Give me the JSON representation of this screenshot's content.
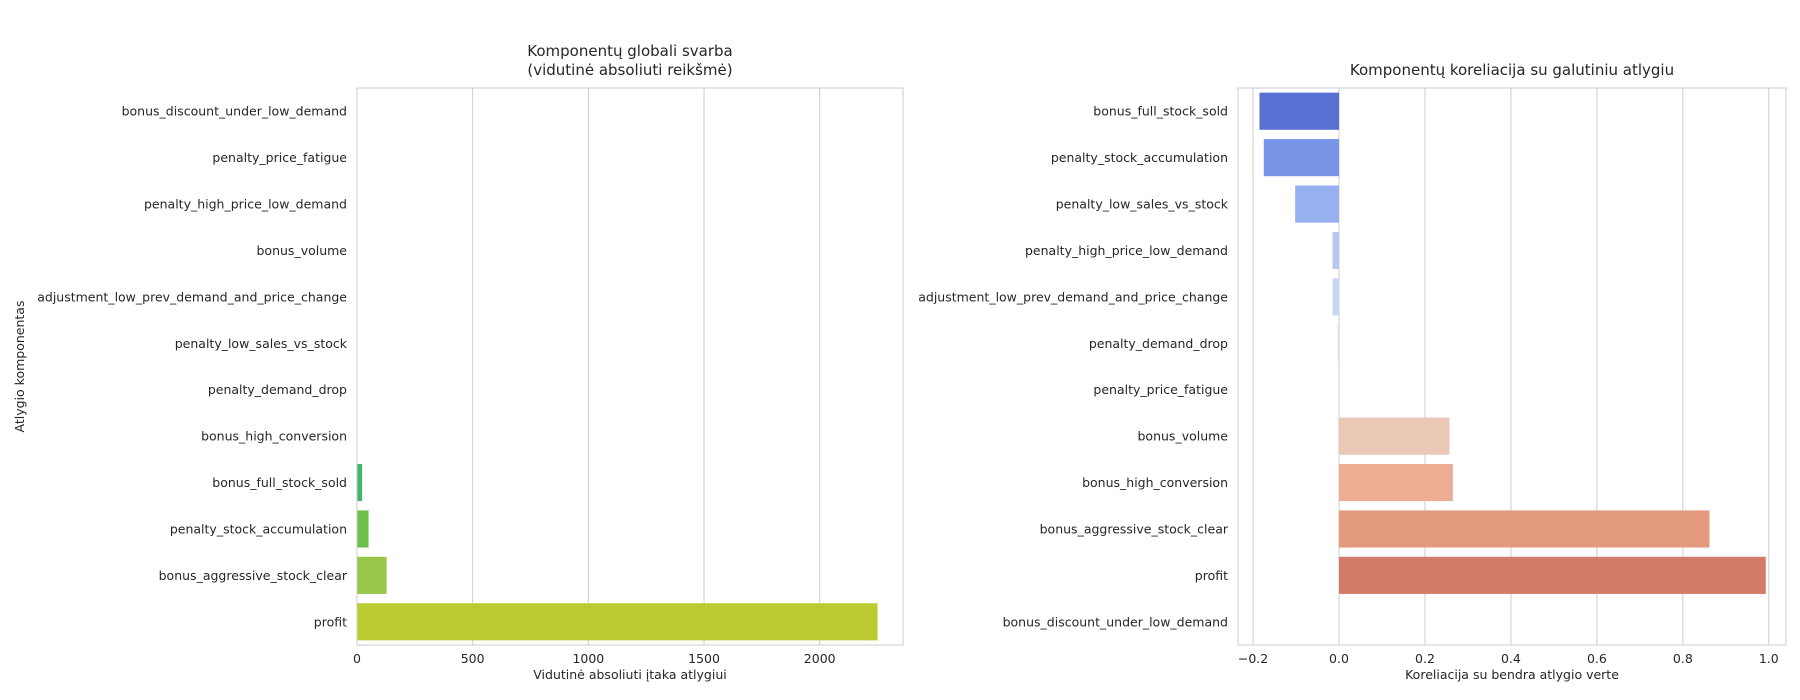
{
  "chart_data": [
    {
      "type": "bar",
      "orientation": "horizontal",
      "title": [
        "Komponentų globali svarba",
        "(vidutinė absoliuti reikšmė)"
      ],
      "xlabel": "Vidutinė absoliuti įtaka atlygiui",
      "ylabel": "Atlygio komponentas",
      "xlim": [
        0,
        2360
      ],
      "xticks": [
        "0",
        "500",
        "1000",
        "1500",
        "2000"
      ],
      "grid": true,
      "categories": [
        "bonus_discount_under_low_demand",
        "penalty_price_fatigue",
        "penalty_high_price_low_demand",
        "bonus_volume",
        "adjustment_low_prev_demand_and_price_change",
        "penalty_low_sales_vs_stock",
        "penalty_demand_drop",
        "bonus_high_conversion",
        "bonus_full_stock_sold",
        "penalty_stock_accumulation",
        "bonus_aggressive_stock_clear",
        "profit"
      ],
      "values": [
        0,
        0,
        0,
        0,
        0,
        0,
        0,
        0,
        22,
        50,
        128,
        2250
      ],
      "colors": [
        "#440154",
        "#482475",
        "#414487",
        "#355f8d",
        "#2a788e",
        "#21918c",
        "#22a884",
        "#44bf70",
        "#3fb86e",
        "#6cc04a",
        "#97c64a",
        "#bccb30"
      ]
    },
    {
      "type": "bar",
      "orientation": "horizontal",
      "title": [
        "Komponentų koreliacija su galutiniu atlygiu"
      ],
      "xlabel": "Koreliacija su bendra atlygio verte",
      "ylabel": "",
      "xlim": [
        -0.235,
        1.04
      ],
      "xticks": [
        "−0.2",
        "0.0",
        "0.2",
        "0.4",
        "0.6",
        "0.8",
        "1.0"
      ],
      "grid": true,
      "categories": [
        "bonus_full_stock_sold",
        "penalty_stock_accumulation",
        "penalty_low_sales_vs_stock",
        "penalty_high_price_low_demand",
        "adjustment_low_prev_demand_and_price_change",
        "penalty_demand_drop",
        "penalty_price_fatigue",
        "bonus_volume",
        "bonus_high_conversion",
        "bonus_aggressive_stock_clear",
        "profit",
        "bonus_discount_under_low_demand"
      ],
      "values": [
        -0.185,
        -0.175,
        -0.102,
        -0.015,
        -0.015,
        -0.003,
        0.0,
        0.257,
        0.265,
        0.862,
        0.993,
        0.0
      ],
      "colors": [
        "#5a71d4",
        "#7895e8",
        "#97b0f0",
        "#b6c9f2",
        "#c8d6f1",
        "#dcdfe6",
        "#e6e2df",
        "#ebc7b6",
        "#ecad93",
        "#e39a7e",
        "#d47a69",
        "#c84d4d"
      ]
    }
  ]
}
